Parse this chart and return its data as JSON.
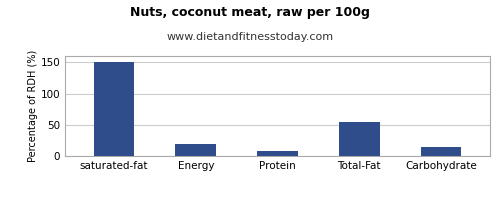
{
  "title": "Nuts, coconut meat, raw per 100g",
  "subtitle": "www.dietandfitnesstoday.com",
  "categories": [
    "saturated-fat",
    "Energy",
    "Protein",
    "Total-Fat",
    "Carbohydrate"
  ],
  "values": [
    150,
    20,
    8,
    54,
    14
  ],
  "bar_color": "#2e4d8a",
  "ylabel": "Percentage of RDH (%)",
  "ylim": [
    0,
    160
  ],
  "yticks": [
    0,
    50,
    100,
    150
  ],
  "background_color": "#ffffff",
  "plot_bg_color": "#ffffff",
  "title_fontsize": 9,
  "subtitle_fontsize": 8,
  "axis_label_fontsize": 7,
  "tick_fontsize": 7.5,
  "grid_color": "#cccccc",
  "border_color": "#aaaaaa"
}
